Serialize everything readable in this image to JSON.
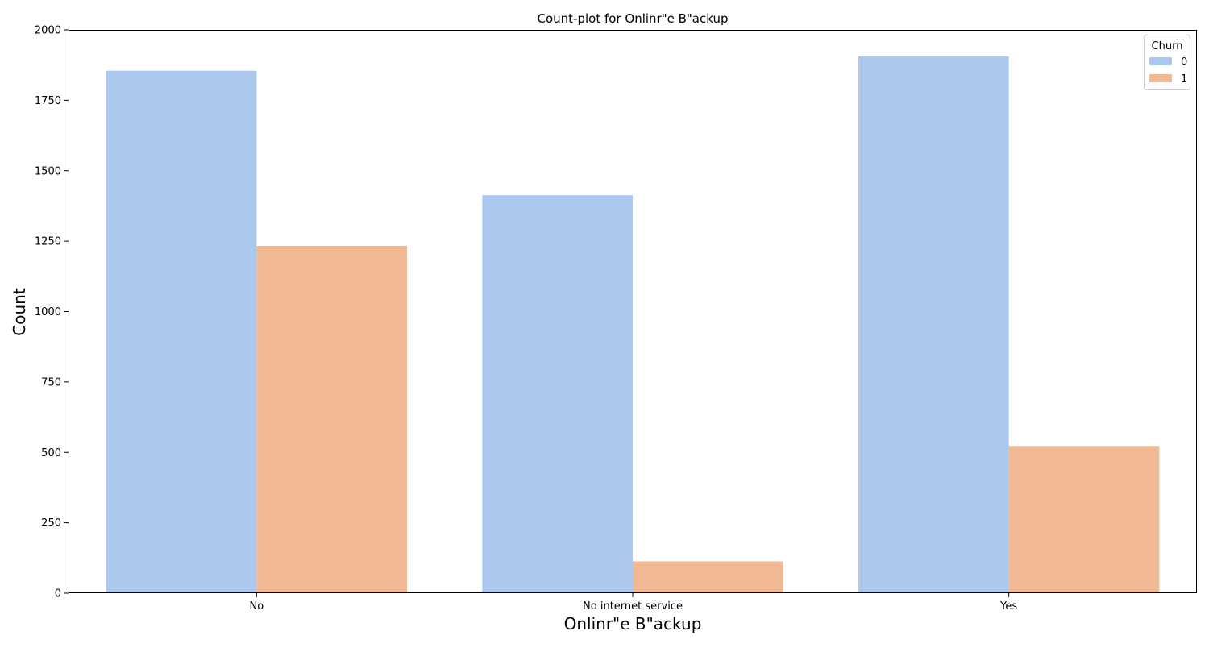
{
  "chart_data": {
    "type": "bar",
    "title": "Count-plot for Onlinr\"e B\"ackup",
    "xlabel": "Onlinr\"e B\"ackup",
    "ylabel": "Count",
    "categories": [
      "No",
      "No internet service",
      "Yes"
    ],
    "series": [
      {
        "name": "0",
        "values": [
          1855,
          1413,
          1906
        ],
        "color": "#abc9ee"
      },
      {
        "name": "1",
        "values": [
          1233,
          113,
          523
        ],
        "color": "#f0b893"
      }
    ],
    "ylim": [
      0,
      2000
    ],
    "yticks": [
      0,
      250,
      500,
      750,
      1000,
      1250,
      1500,
      1750,
      2000
    ],
    "grid": false,
    "legend": {
      "title": "Churn",
      "placement": "top-right"
    }
  }
}
